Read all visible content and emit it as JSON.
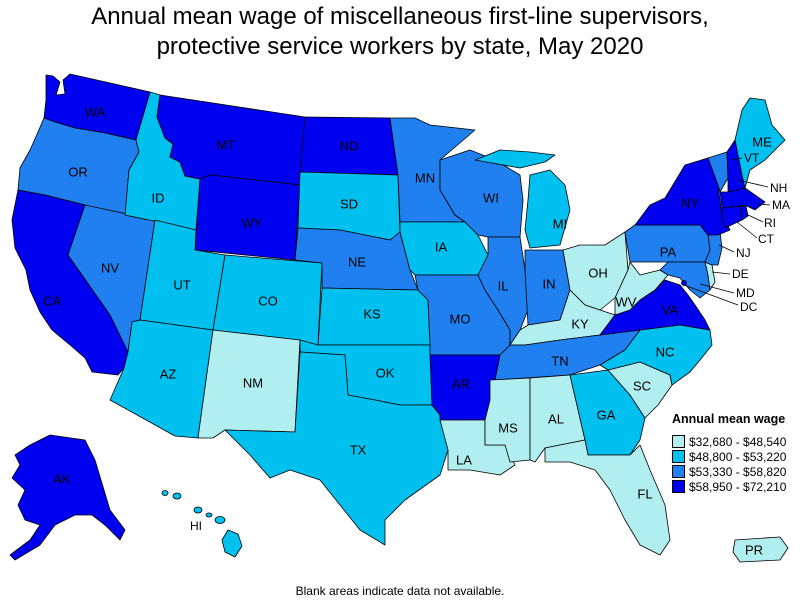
{
  "title": {
    "line1": "Annual mean wage of miscellaneous first-line supervisors,",
    "line2": "protective service workers by state, May 2020"
  },
  "legend": {
    "title": "Annual mean wage",
    "bins": [
      {
        "label": "$32,680 - $48,540",
        "color": "#b0eef0"
      },
      {
        "label": "$48,800 - $53,220",
        "color": "#00c0f0"
      },
      {
        "label": "$53,330 - $58,820",
        "color": "#2080f0"
      },
      {
        "label": "$58,950 - $72,210",
        "color": "#0000f0"
      }
    ]
  },
  "footnote": "Blank areas indicate data not available.",
  "states": {
    "WA": 3,
    "OR": 2,
    "CA": 3,
    "NV": 2,
    "ID": 1,
    "MT": 3,
    "WY": 3,
    "UT": 1,
    "AZ": 1,
    "CO": 1,
    "NM": 0,
    "ND": 3,
    "SD": 1,
    "NE": 2,
    "KS": 1,
    "OK": 1,
    "TX": 1,
    "MN": 2,
    "IA": 1,
    "MO": 2,
    "AR": 3,
    "LA": 0,
    "WI": 2,
    "IL": 2,
    "MI": 1,
    "IN": 2,
    "OH": 0,
    "KY": 0,
    "TN": 2,
    "MS": 0,
    "AL": 0,
    "GA": 1,
    "FL": 0,
    "SC": 0,
    "NC": 1,
    "VA": 3,
    "WV": 0,
    "PA": 2,
    "NY": 3,
    "VT": 2,
    "NH": 3,
    "ME": 1,
    "MA": 3,
    "RI": 3,
    "CT": 3,
    "NJ": 2,
    "DE": 0,
    "MD": 2,
    "DC": 3,
    "AK": 3,
    "HI": 1,
    "PR": 0
  },
  "labels": {
    "WA": "WA",
    "OR": "OR",
    "CA": "CA",
    "NV": "NV",
    "ID": "ID",
    "MT": "MT",
    "WY": "WY",
    "UT": "UT",
    "AZ": "AZ",
    "CO": "CO",
    "NM": "NM",
    "ND": "ND",
    "SD": "SD",
    "NE": "NE",
    "KS": "KS",
    "OK": "OK",
    "TX": "TX",
    "MN": "MN",
    "IA": "IA",
    "MO": "MO",
    "AR": "AR",
    "LA": "LA",
    "WI": "WI",
    "IL": "IL",
    "MI": "MI",
    "IN": "IN",
    "OH": "OH",
    "KY": "KY",
    "TN": "TN",
    "MS": "MS",
    "AL": "AL",
    "GA": "GA",
    "FL": "FL",
    "SC": "SC",
    "NC": "NC",
    "VA": "VA",
    "WV": "WV",
    "PA": "PA",
    "NY": "NY",
    "VT": "VT",
    "NH": "NH",
    "ME": "ME",
    "MA": "MA",
    "RI": "RI",
    "CT": "CT",
    "NJ": "NJ",
    "DE": "DE",
    "MD": "MD",
    "DC": "DC",
    "AK": "AK",
    "HI": "HI",
    "PR": "PR"
  }
}
